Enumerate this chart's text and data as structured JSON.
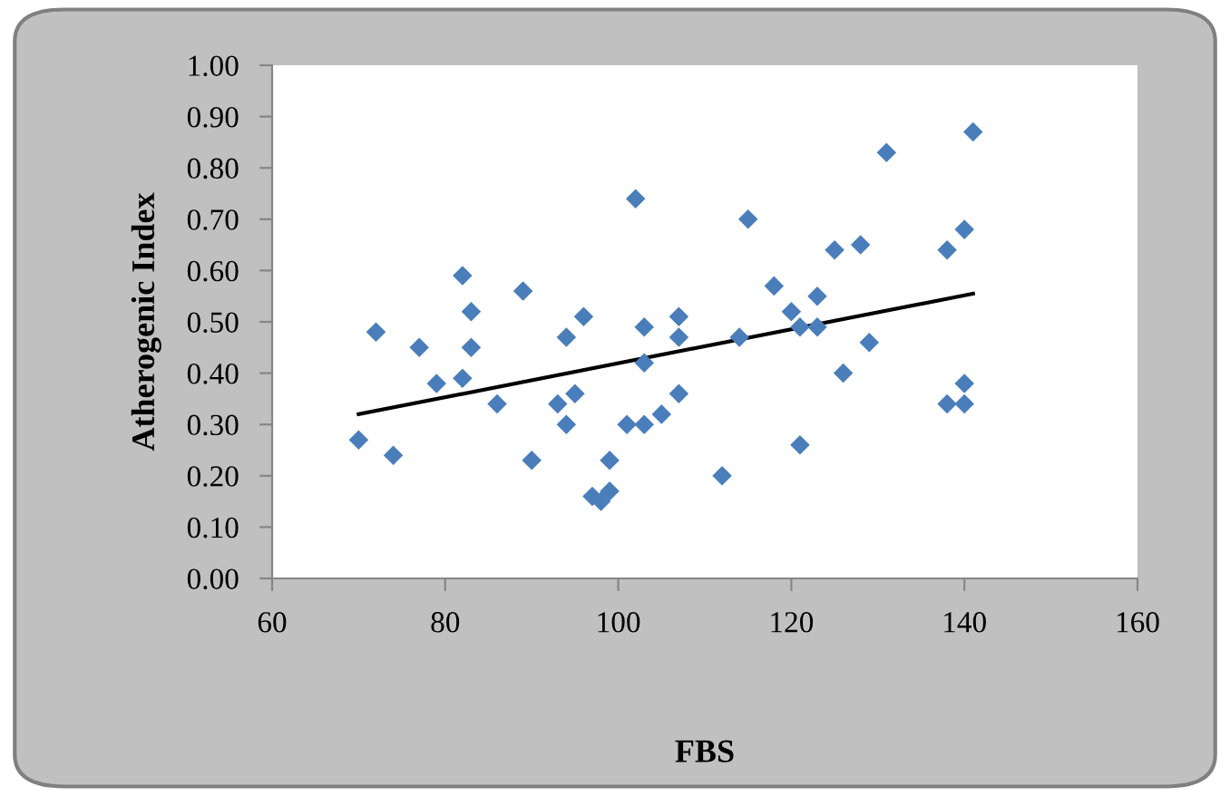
{
  "chart_data": {
    "type": "scatter",
    "xlabel": "FBS",
    "ylabel": "Atherogenic Index",
    "marker": "diamond",
    "grid": false,
    "legend": false,
    "xlim": [
      60,
      160
    ],
    "xticks": [
      60,
      80,
      100,
      120,
      140,
      160
    ],
    "ylim": [
      0,
      1
    ],
    "yticks": [
      {
        "value": 0,
        "label": "0.00"
      },
      {
        "value": 0.1,
        "label": "0.10"
      },
      {
        "value": 0.2,
        "label": "0.20"
      },
      {
        "value": 0.3,
        "label": "0.30"
      },
      {
        "value": 0.4,
        "label": "0.40"
      },
      {
        "value": 0.5,
        "label": "0.50"
      },
      {
        "value": 0.6,
        "label": "0.60"
      },
      {
        "value": 0.7,
        "label": "0.70"
      },
      {
        "value": 0.8,
        "label": "0.80"
      },
      {
        "value": 0.9,
        "label": "0.90"
      },
      {
        "value": 1,
        "label": "1.00"
      }
    ],
    "series": [
      {
        "color": "#4a7ebb",
        "x": [
          70,
          72,
          74,
          77,
          79,
          82,
          82,
          83,
          83,
          86,
          89,
          90,
          93,
          94,
          94,
          95,
          96,
          97,
          98,
          99,
          99,
          101,
          102,
          103,
          103,
          103,
          105,
          107,
          107,
          107,
          112,
          114,
          115,
          118,
          120,
          121,
          121,
          123,
          123,
          125,
          126,
          128,
          129,
          131,
          138,
          138,
          140,
          140,
          140,
          141
        ],
        "values": [
          0.27,
          0.48,
          0.24,
          0.45,
          0.38,
          0.39,
          0.59,
          0.52,
          0.45,
          0.34,
          0.56,
          0.23,
          0.34,
          0.3,
          0.47,
          0.36,
          0.51,
          0.16,
          0.15,
          0.17,
          0.23,
          0.3,
          0.74,
          0.3,
          0.42,
          0.49,
          0.32,
          0.47,
          0.51,
          0.36,
          0.2,
          0.47,
          0.7,
          0.57,
          0.52,
          0.49,
          0.26,
          0.55,
          0.49,
          0.64,
          0.4,
          0.65,
          0.46,
          0.83,
          0.64,
          0.34,
          0.68,
          0.38,
          0.34,
          0.87
        ]
      },
      {
        "type": "line",
        "color": "#000000",
        "marker": "none",
        "x": [
          70,
          141
        ],
        "values": [
          0.32,
          0.555
        ]
      }
    ]
  }
}
